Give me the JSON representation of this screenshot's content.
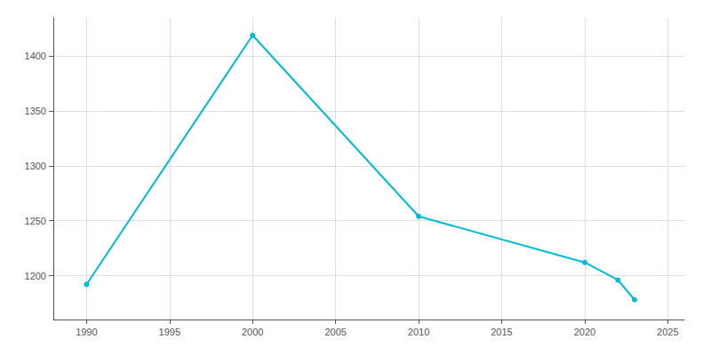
{
  "chart_data": {
    "type": "line",
    "x": [
      1990,
      2000,
      2010,
      2020,
      2022,
      2023
    ],
    "values": [
      1192,
      1419,
      1254,
      1212,
      1196,
      1178
    ],
    "color": "#00BCD4",
    "marker": "circle",
    "xlim": [
      1988,
      2026
    ],
    "ylim": [
      1160,
      1435
    ],
    "xticks": [
      1990,
      1995,
      2000,
      2005,
      2010,
      2015,
      2020,
      2025
    ],
    "yticks": [
      1200,
      1250,
      1300,
      1350,
      1400
    ],
    "grid": true
  }
}
